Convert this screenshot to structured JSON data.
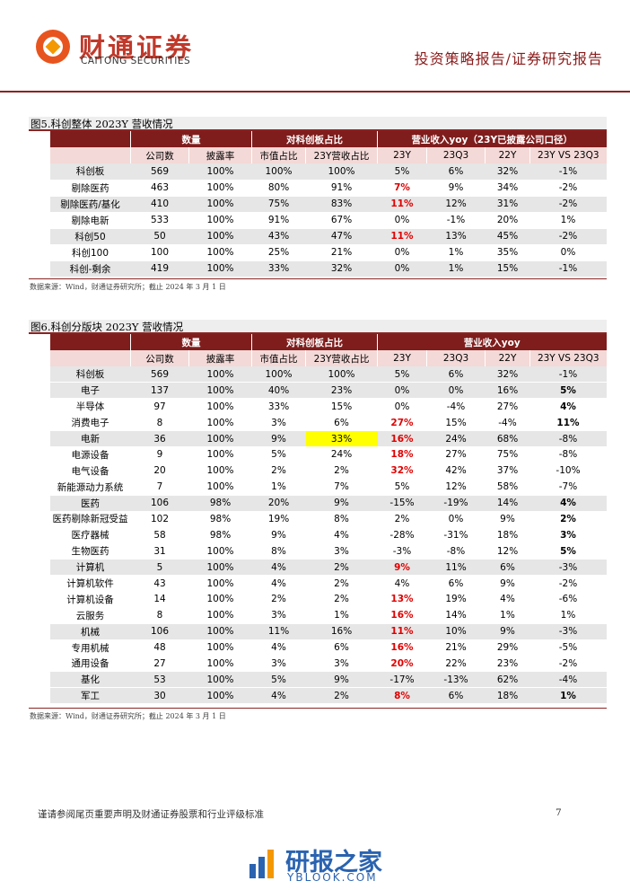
{
  "header": {
    "brand": "财通证券",
    "brand_en": "CAITONG SECURITIES",
    "report_type": "投资策略报告/证券研究报告"
  },
  "tables": [
    {
      "caption": "图5.科创整体 2023Y 营收情况",
      "groups": [
        "数量",
        "对科创板占比",
        "营业收入yoy（23Y已披露公司口径）"
      ],
      "subheaders": [
        "公司数",
        "披露率",
        "市值占比",
        "23Y营收占比",
        "23Y",
        "23Q3",
        "22Y",
        "23Y VS 23Q3"
      ],
      "rows": [
        [
          "科创板",
          "569",
          "100%",
          "100%",
          "100%",
          "5%",
          "6%",
          "32%",
          "-1%"
        ],
        [
          "剔除医药",
          "463",
          "100%",
          "80%",
          "91%",
          "7%",
          "9%",
          "34%",
          "-2%"
        ],
        [
          "剔除医药/基化",
          "410",
          "100%",
          "75%",
          "83%",
          "11%",
          "12%",
          "31%",
          "-2%"
        ],
        [
          "剔除电新",
          "533",
          "100%",
          "91%",
          "67%",
          "0%",
          "-1%",
          "20%",
          "1%"
        ],
        [
          "科创50",
          "50",
          "100%",
          "43%",
          "47%",
          "11%",
          "13%",
          "45%",
          "-2%"
        ],
        [
          "科创100",
          "100",
          "100%",
          "25%",
          "21%",
          "0%",
          "1%",
          "35%",
          "0%"
        ],
        [
          "科创-剩余",
          "419",
          "100%",
          "33%",
          "32%",
          "0%",
          "1%",
          "15%",
          "-1%"
        ]
      ],
      "source": "数据来源：Wind，财通证券研究所；截止 2024 年 3 月 1 日"
    },
    {
      "caption": "图6.科创分版块 2023Y 营收情况",
      "groups": [
        "数量",
        "对科创板占比",
        "营业收入yoy"
      ],
      "subheaders": [
        "公司数",
        "披露率",
        "市值占比",
        "23Y营收占比",
        "23Y",
        "23Q3",
        "22Y",
        "23Y VS 23Q3"
      ],
      "rows": [
        [
          "科创板",
          "569",
          "100%",
          "100%",
          "100%",
          "5%",
          "6%",
          "32%",
          "-1%"
        ],
        [
          "电子",
          "137",
          "100%",
          "40%",
          "23%",
          "0%",
          "0%",
          "16%",
          "5%"
        ],
        [
          "半导体",
          "97",
          "100%",
          "33%",
          "15%",
          "0%",
          "-4%",
          "27%",
          "4%"
        ],
        [
          "消费电子",
          "8",
          "100%",
          "3%",
          "6%",
          "27%",
          "15%",
          "-4%",
          "11%"
        ],
        [
          "电新",
          "36",
          "100%",
          "9%",
          "33%",
          "16%",
          "24%",
          "68%",
          "-8%"
        ],
        [
          "电源设备",
          "9",
          "100%",
          "5%",
          "24%",
          "18%",
          "27%",
          "75%",
          "-8%"
        ],
        [
          "电气设备",
          "20",
          "100%",
          "2%",
          "2%",
          "32%",
          "42%",
          "37%",
          "-10%"
        ],
        [
          "新能源动力系统",
          "7",
          "100%",
          "1%",
          "7%",
          "5%",
          "12%",
          "58%",
          "-7%"
        ],
        [
          "医药",
          "106",
          "98%",
          "20%",
          "9%",
          "-15%",
          "-19%",
          "14%",
          "4%"
        ],
        [
          "医药剔除新冠受益",
          "102",
          "98%",
          "19%",
          "8%",
          "2%",
          "0%",
          "9%",
          "2%"
        ],
        [
          "医疗器械",
          "58",
          "98%",
          "9%",
          "4%",
          "-28%",
          "-31%",
          "18%",
          "3%"
        ],
        [
          "生物医药",
          "31",
          "100%",
          "8%",
          "3%",
          "-3%",
          "-8%",
          "12%",
          "5%"
        ],
        [
          "计算机",
          "5",
          "100%",
          "4%",
          "2%",
          "9%",
          "11%",
          "6%",
          "-3%"
        ],
        [
          "计算机软件",
          "43",
          "100%",
          "4%",
          "2%",
          "4%",
          "6%",
          "9%",
          "-2%"
        ],
        [
          "计算机设备",
          "14",
          "100%",
          "2%",
          "2%",
          "13%",
          "19%",
          "4%",
          "-6%"
        ],
        [
          "云服务",
          "8",
          "100%",
          "3%",
          "1%",
          "16%",
          "14%",
          "1%",
          "1%"
        ],
        [
          "机械",
          "106",
          "100%",
          "11%",
          "16%",
          "11%",
          "10%",
          "9%",
          "-3%"
        ],
        [
          "专用机械",
          "48",
          "100%",
          "4%",
          "6%",
          "16%",
          "21%",
          "29%",
          "-5%"
        ],
        [
          "通用设备",
          "27",
          "100%",
          "3%",
          "3%",
          "20%",
          "22%",
          "23%",
          "-2%"
        ],
        [
          "基化",
          "53",
          "100%",
          "5%",
          "9%",
          "-17%",
          "-13%",
          "62%",
          "-4%"
        ],
        [
          "军工",
          "30",
          "100%",
          "4%",
          "2%",
          "8%",
          "6%",
          "18%",
          "1%"
        ]
      ],
      "source": "数据来源：Wind，财通证券研究所；截止 2024 年 3 月 1 日"
    }
  ],
  "footer": {
    "disclaimer": "谨请参阅尾页重要声明及财通证券股票和行业评级标准",
    "page": "7"
  },
  "watermark": {
    "name": "研报之家",
    "site": "YBLOOK.COM"
  }
}
